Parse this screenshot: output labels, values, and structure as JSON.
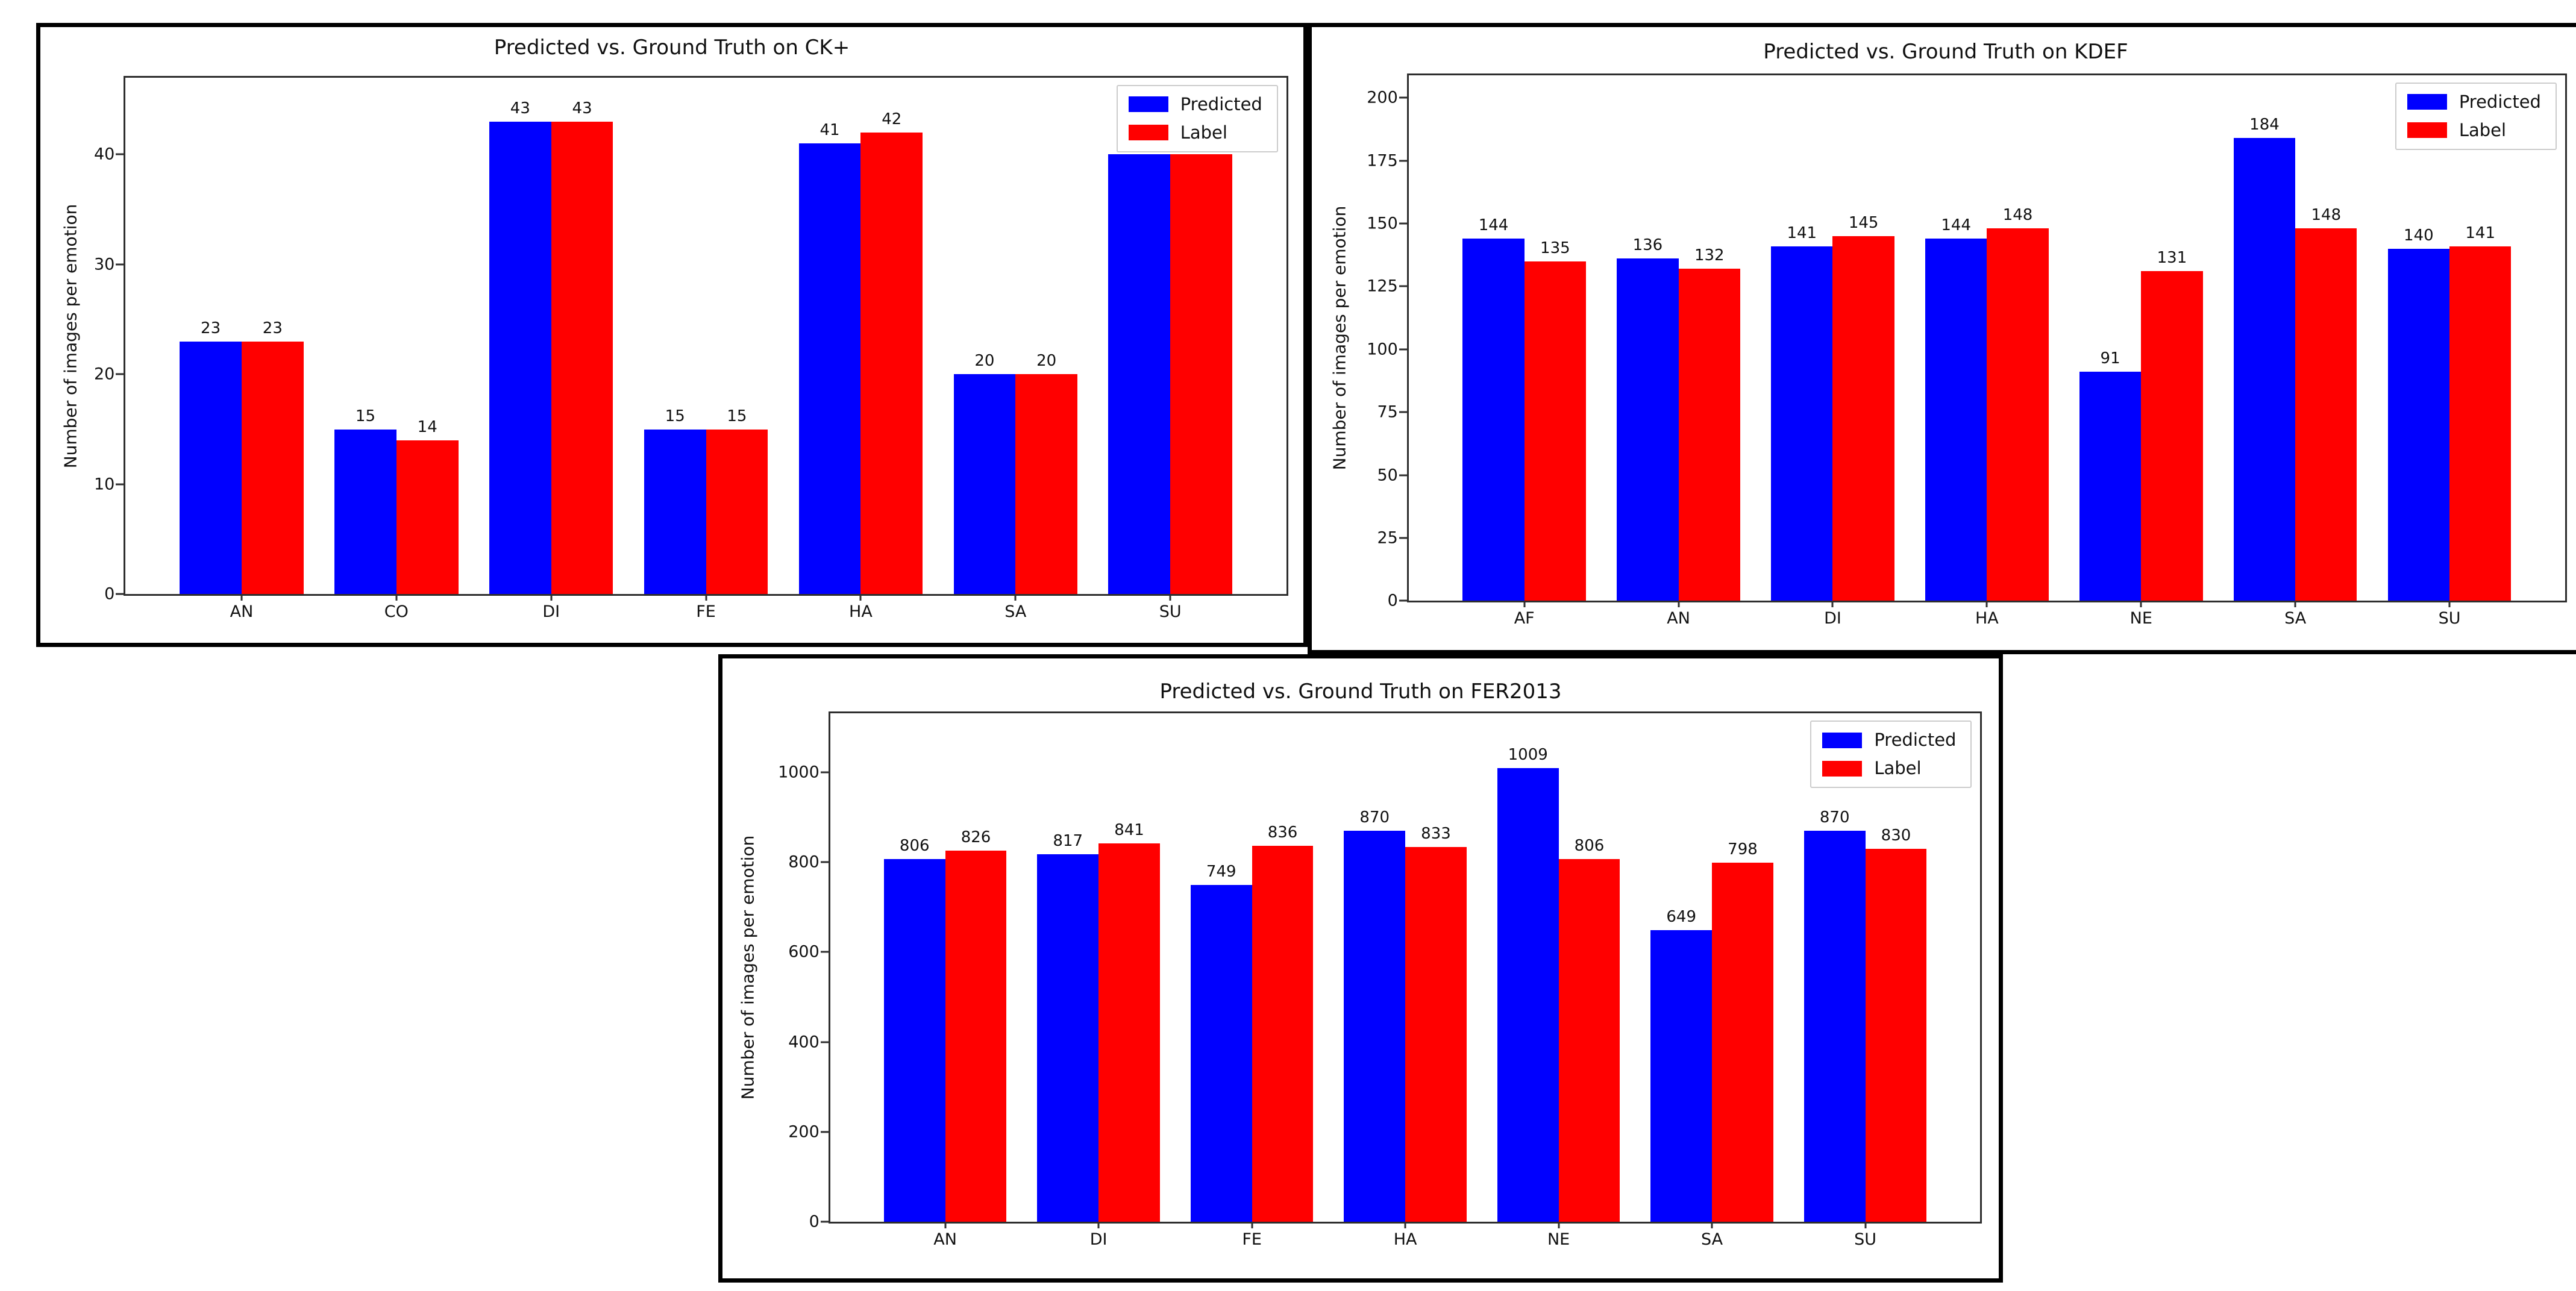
{
  "chart_data": [
    {
      "type": "bar",
      "title": "Predicted vs. Ground Truth on CK+",
      "xlabel": "",
      "ylabel": "Number of images per emotion",
      "categories": [
        "AN",
        "CO",
        "DI",
        "FE",
        "HA",
        "SA",
        "SU"
      ],
      "series": [
        {
          "name": "Predicted",
          "color": "#0000ff",
          "values": [
            23,
            15,
            43,
            15,
            41,
            20,
            40
          ]
        },
        {
          "name": "Label",
          "color": "#ff0000",
          "values": [
            23,
            14,
            43,
            15,
            42,
            20,
            40
          ]
        }
      ],
      "yticks": [
        0,
        10,
        20,
        30,
        40
      ],
      "ylim": [
        0,
        47
      ],
      "grid": false,
      "legend_position": "upper right",
      "bar_value_labels": true
    },
    {
      "type": "bar",
      "title": "Predicted vs. Ground Truth on KDEF",
      "xlabel": "",
      "ylabel": "Number of images per emotion",
      "categories": [
        "AF",
        "AN",
        "DI",
        "HA",
        "NE",
        "SA",
        "SU"
      ],
      "series": [
        {
          "name": "Predicted",
          "color": "#0000ff",
          "values": [
            144,
            136,
            141,
            144,
            91,
            184,
            140
          ]
        },
        {
          "name": "Label",
          "color": "#ff0000",
          "values": [
            135,
            132,
            145,
            148,
            131,
            148,
            141
          ]
        }
      ],
      "yticks": [
        0,
        25,
        50,
        75,
        100,
        125,
        150,
        175,
        200
      ],
      "ylim": [
        0,
        209
      ],
      "grid": false,
      "legend_position": "upper right",
      "bar_value_labels": true
    },
    {
      "type": "bar",
      "title": "Predicted vs. Ground Truth on FER2013",
      "xlabel": "",
      "ylabel": "Number of images per emotion",
      "categories": [
        "AN",
        "DI",
        "FE",
        "HA",
        "NE",
        "SA",
        "SU"
      ],
      "series": [
        {
          "name": "Predicted",
          "color": "#0000ff",
          "values": [
            806,
            817,
            749,
            870,
            1009,
            649,
            870
          ]
        },
        {
          "name": "Label",
          "color": "#ff0000",
          "values": [
            826,
            841,
            836,
            833,
            806,
            798,
            830
          ]
        }
      ],
      "yticks": [
        0,
        200,
        400,
        600,
        800,
        1000
      ],
      "ylim": [
        0,
        1130
      ],
      "grid": false,
      "legend_position": "upper right",
      "bar_value_labels": true
    }
  ]
}
